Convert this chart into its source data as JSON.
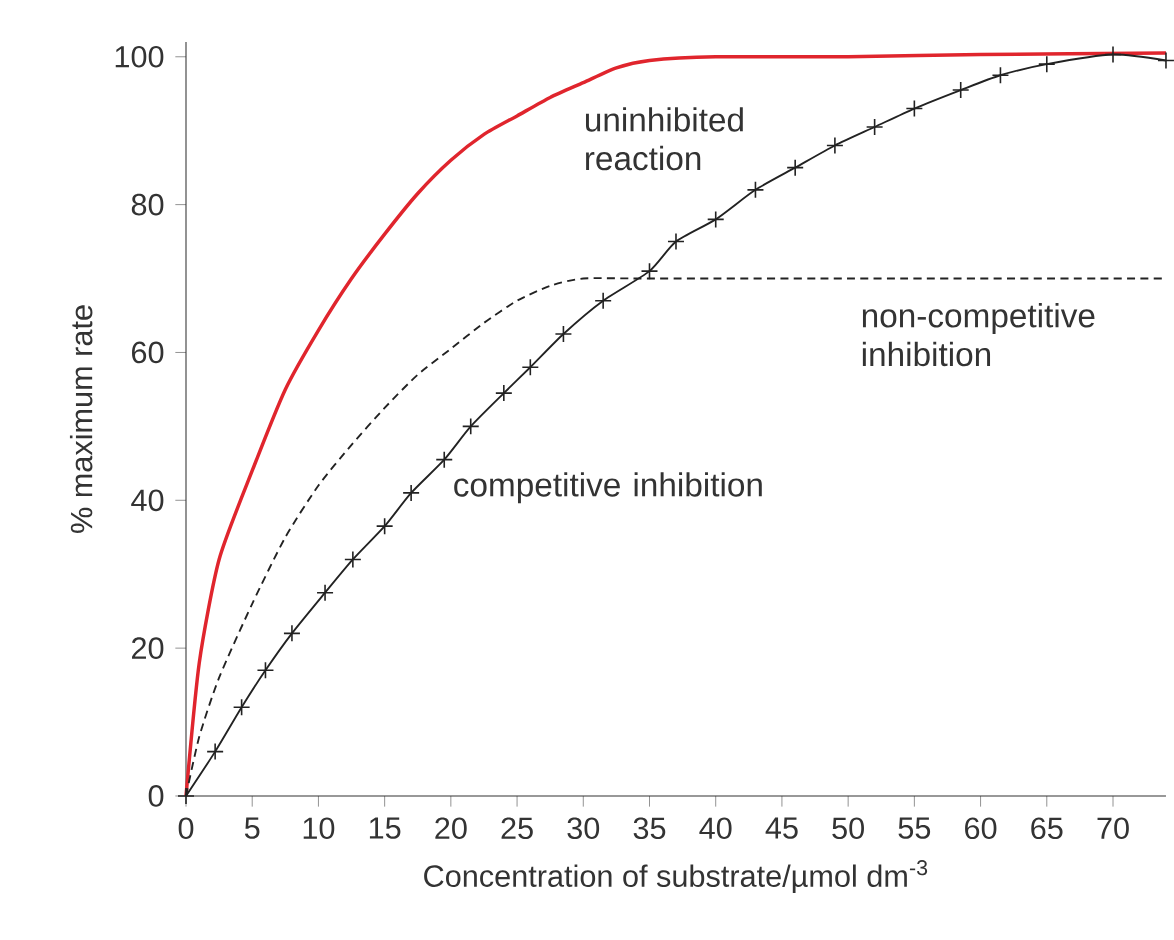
{
  "chart_data": {
    "type": "line",
    "xlabel": "Concentration of substrate/µmol dm$^{-3}$",
    "ylabel": "% maximum rate",
    "xlim": [
      0,
      74
    ],
    "ylim": [
      0,
      102
    ],
    "xticks": [
      0,
      5,
      10,
      15,
      20,
      25,
      30,
      35,
      40,
      45,
      50,
      55,
      60,
      65,
      70
    ],
    "yticks": [
      0,
      20,
      40,
      60,
      80,
      100
    ],
    "grid": false,
    "legend": false,
    "series": [
      {
        "name": "uninhibited reaction",
        "color": "#e0252d",
        "line_style": "solid",
        "marker": "none",
        "x": [
          0,
          1,
          2.5,
          5,
          7.5,
          10,
          12.5,
          15,
          17.5,
          20,
          22.5,
          25,
          27.5,
          30,
          32.5,
          35,
          40,
          50,
          60,
          74
        ],
        "values": [
          0,
          18,
          32,
          44,
          55,
          63,
          70,
          76,
          81.5,
          86,
          89.5,
          92,
          94.5,
          96.5,
          98.5,
          99.5,
          100,
          100,
          100.3,
          100.5
        ]
      },
      {
        "name": "non-competitive inhibition",
        "color": "#222222",
        "line_style": "dashed",
        "marker": "none",
        "x": [
          0,
          1,
          2.5,
          5,
          7.5,
          10,
          12.5,
          15,
          17.5,
          20,
          22.5,
          25,
          27.5,
          30,
          35,
          50,
          74
        ],
        "values": [
          0,
          8,
          16,
          26,
          35,
          42,
          47.5,
          52.5,
          57,
          60.5,
          64,
          67,
          69,
          70,
          70,
          70,
          70
        ]
      },
      {
        "name": "competitive inhibition",
        "color": "#222222",
        "line_style": "solid",
        "marker": "cross",
        "x": [
          0,
          2.2,
          4.2,
          6,
          8,
          10.5,
          12.6,
          15,
          17,
          19.5,
          21.5,
          24,
          26,
          28.5,
          31.5,
          35,
          37,
          40,
          43,
          46,
          49,
          52,
          55,
          58.5,
          61.5,
          65,
          70,
          74
        ],
        "values": [
          0,
          6,
          12,
          17,
          22,
          27.5,
          32,
          36.5,
          41,
          45.5,
          50,
          54.5,
          58,
          62.5,
          67,
          71,
          75,
          78,
          82,
          85,
          88,
          90.5,
          93,
          95.5,
          97.5,
          99,
          100.3,
          99.5
        ]
      }
    ]
  }
}
